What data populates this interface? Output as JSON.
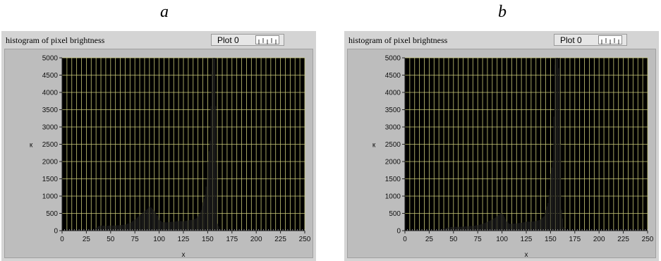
{
  "panels": [
    {
      "letter": "a",
      "title": "histogram of pixel brightness",
      "legend_label": "Plot 0"
    },
    {
      "letter": "b",
      "title": "histogram of pixel brightness",
      "legend_label": "Plot 0"
    }
  ],
  "colors": {
    "background": "#000000",
    "grid": "#c8c878",
    "bars": "#1c1c1c",
    "panel": "#d4d4d4"
  },
  "chart_data": [
    {
      "type": "bar",
      "title": "histogram of pixel brightness",
      "xlabel": "x",
      "ylabel": "к",
      "xlim": [
        0,
        250
      ],
      "ylim": [
        0,
        5000
      ],
      "xticks": [
        0,
        25,
        50,
        75,
        100,
        125,
        150,
        175,
        200,
        225,
        250
      ],
      "yticks": [
        0,
        500,
        1000,
        1500,
        2000,
        2500,
        3000,
        3500,
        4000,
        4500,
        5000
      ],
      "grid": true,
      "legend": {
        "entries": [
          "Plot 0"
        ],
        "position": "top-right"
      },
      "points": [
        [
          30,
          20
        ],
        [
          33,
          40
        ],
        [
          35,
          90
        ],
        [
          37,
          130
        ],
        [
          40,
          150
        ],
        [
          45,
          140
        ],
        [
          50,
          150
        ],
        [
          55,
          150
        ],
        [
          60,
          160
        ],
        [
          65,
          180
        ],
        [
          70,
          230
        ],
        [
          75,
          330
        ],
        [
          80,
          450
        ],
        [
          85,
          580
        ],
        [
          88,
          640
        ],
        [
          90,
          700
        ],
        [
          92,
          660
        ],
        [
          95,
          560
        ],
        [
          98,
          440
        ],
        [
          100,
          310
        ],
        [
          103,
          250
        ],
        [
          107,
          240
        ],
        [
          110,
          250
        ],
        [
          115,
          260
        ],
        [
          120,
          280
        ],
        [
          125,
          270
        ],
        [
          130,
          300
        ],
        [
          135,
          320
        ],
        [
          138,
          360
        ],
        [
          140,
          420
        ],
        [
          143,
          600
        ],
        [
          145,
          820
        ],
        [
          147,
          1050
        ],
        [
          149,
          1500
        ],
        [
          150,
          2000
        ],
        [
          152,
          2600
        ],
        [
          154,
          4600
        ],
        [
          155,
          5000
        ],
        [
          156,
          5000
        ],
        [
          157,
          5000
        ],
        [
          158,
          3600
        ],
        [
          160,
          200
        ],
        [
          162,
          50
        ],
        [
          165,
          10
        ]
      ]
    },
    {
      "type": "bar",
      "title": "histogram of pixel brightness",
      "xlabel": "x",
      "ylabel": "к",
      "xlim": [
        0,
        250
      ],
      "ylim": [
        0,
        5000
      ],
      "xticks": [
        0,
        25,
        50,
        75,
        100,
        125,
        150,
        175,
        200,
        225,
        250
      ],
      "yticks": [
        0,
        500,
        1000,
        1500,
        2000,
        2500,
        3000,
        3500,
        4000,
        4500,
        5000
      ],
      "grid": true,
      "legend": {
        "entries": [
          "Plot 0"
        ],
        "position": "top-right"
      },
      "points": [
        [
          35,
          20
        ],
        [
          40,
          60
        ],
        [
          45,
          100
        ],
        [
          50,
          110
        ],
        [
          55,
          110
        ],
        [
          60,
          120
        ],
        [
          65,
          130
        ],
        [
          70,
          140
        ],
        [
          75,
          160
        ],
        [
          80,
          200
        ],
        [
          85,
          260
        ],
        [
          90,
          330
        ],
        [
          94,
          400
        ],
        [
          97,
          480
        ],
        [
          99,
          520
        ],
        [
          101,
          460
        ],
        [
          104,
          300
        ],
        [
          107,
          200
        ],
        [
          110,
          200
        ],
        [
          115,
          210
        ],
        [
          120,
          230
        ],
        [
          125,
          260
        ],
        [
          130,
          260
        ],
        [
          135,
          280
        ],
        [
          140,
          330
        ],
        [
          143,
          420
        ],
        [
          145,
          600
        ],
        [
          147,
          800
        ],
        [
          149,
          1200
        ],
        [
          150,
          1650
        ],
        [
          152,
          2000
        ],
        [
          153,
          3300
        ],
        [
          154,
          4800
        ],
        [
          155,
          5000
        ],
        [
          157,
          5000
        ],
        [
          158,
          4700
        ],
        [
          159,
          5000
        ],
        [
          160,
          2500
        ],
        [
          161,
          600
        ],
        [
          163,
          100
        ],
        [
          166,
          30
        ],
        [
          170,
          10
        ]
      ]
    }
  ]
}
